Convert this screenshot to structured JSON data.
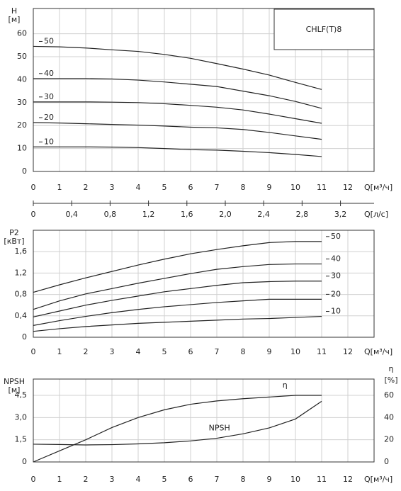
{
  "chart_data": [
    {
      "type": "line",
      "title": "CHLF(T)8",
      "ylabel": "H",
      "yunit": "[м]",
      "xlabel": "Q[м³/ч]",
      "x": [
        0,
        1,
        2,
        3,
        4,
        5,
        6,
        7,
        8,
        9,
        10,
        11
      ],
      "xlim": [
        0,
        13
      ],
      "xticks": [
        0,
        1,
        2,
        3,
        4,
        5,
        6,
        7,
        8,
        9,
        10,
        11,
        12
      ],
      "ylim": [
        0,
        71
      ],
      "yticks": [
        0,
        10,
        20,
        30,
        40,
        50,
        60
      ],
      "x2label": "Q[л/с]",
      "x2lim": [
        0,
        3.55
      ],
      "x2ticks": [
        0,
        {
          "value": 0.4,
          "label": "0,4"
        },
        {
          "value": 0.8,
          "label": "0,8"
        },
        {
          "value": 1.2,
          "label": "1,2"
        },
        {
          "value": 1.6,
          "label": "1,6"
        },
        {
          "value": 2.0,
          "label": "2,0"
        },
        {
          "value": 2.4,
          "label": "2,4"
        },
        {
          "value": 2.8,
          "label": "2,8"
        },
        {
          "value": 3.2,
          "label": "3,2"
        }
      ],
      "grid": true,
      "color": "#222",
      "series": [
        {
          "name": "50",
          "values": [
            54.5,
            54.3,
            53.8,
            53,
            52.3,
            51,
            49.3,
            47,
            44.6,
            42,
            38.8,
            35.7
          ]
        },
        {
          "name": "40",
          "values": [
            40.5,
            40.5,
            40.5,
            40.3,
            39.8,
            39,
            38,
            37,
            35,
            33,
            30.5,
            27.5
          ]
        },
        {
          "name": "30",
          "values": [
            30.3,
            30.3,
            30.3,
            30.2,
            30,
            29.5,
            28.8,
            28,
            26.8,
            25,
            23,
            21
          ]
        },
        {
          "name": "20",
          "values": [
            21.3,
            21.1,
            20.8,
            20.5,
            20.2,
            19.8,
            19.3,
            19,
            18.3,
            17,
            15.5,
            14
          ]
        },
        {
          "name": "10",
          "values": [
            10.7,
            10.7,
            10.7,
            10.6,
            10.4,
            10,
            9.5,
            9.3,
            8.8,
            8.2,
            7.4,
            6.5
          ]
        }
      ]
    },
    {
      "type": "line",
      "ylabel": "P2",
      "yunit": "[кВт]",
      "xlabel": "Q[м³/ч]",
      "x": [
        0,
        1,
        2,
        3,
        4,
        5,
        6,
        7,
        8,
        9,
        10,
        11
      ],
      "xlim": [
        0,
        13
      ],
      "xticks": [
        0,
        1,
        2,
        3,
        4,
        5,
        6,
        7,
        8,
        9,
        10,
        11,
        12
      ],
      "ylim": [
        0,
        2.0
      ],
      "yticks": [
        0,
        {
          "value": 0.4,
          "label": "0,4"
        },
        {
          "value": 0.8,
          "label": "0,8"
        },
        {
          "value": 1.2,
          "label": "1,2"
        },
        {
          "value": 1.6,
          "label": "1,6"
        }
      ],
      "grid": true,
      "color": "#222",
      "series": [
        {
          "name": "50",
          "values": [
            0.84,
            0.98,
            1.11,
            1.23,
            1.35,
            1.46,
            1.56,
            1.64,
            1.71,
            1.77,
            1.79,
            1.79
          ]
        },
        {
          "name": "40",
          "values": [
            0.52,
            0.68,
            0.81,
            0.91,
            1.01,
            1.1,
            1.19,
            1.27,
            1.32,
            1.36,
            1.37,
            1.37
          ]
        },
        {
          "name": "30",
          "values": [
            0.38,
            0.49,
            0.6,
            0.69,
            0.77,
            0.85,
            0.91,
            0.97,
            1.02,
            1.04,
            1.05,
            1.05
          ]
        },
        {
          "name": "20",
          "values": [
            0.22,
            0.31,
            0.39,
            0.46,
            0.52,
            0.57,
            0.61,
            0.65,
            0.68,
            0.71,
            0.71,
            0.71
          ]
        },
        {
          "name": "10",
          "values": [
            0.11,
            0.16,
            0.2,
            0.23,
            0.26,
            0.28,
            0.3,
            0.32,
            0.34,
            0.35,
            0.37,
            0.39
          ]
        }
      ]
    },
    {
      "type": "line",
      "ylabel": "NPSH",
      "yunit": "[м]",
      "y2label": "η",
      "y2unit": "[%]",
      "xlabel": "Q[м³/ч]",
      "x": [
        0,
        1,
        2,
        3,
        4,
        5,
        6,
        7,
        8,
        9,
        10,
        11
      ],
      "xlim": [
        0,
        13
      ],
      "xticks": [
        0,
        1,
        2,
        3,
        4,
        5,
        6,
        7,
        8,
        9,
        10,
        11,
        12
      ],
      "ylim": [
        0,
        5.6
      ],
      "yticks": [
        0,
        {
          "value": 1.5,
          "label": "1,5"
        },
        {
          "value": 3.0,
          "label": "3,0"
        },
        {
          "value": 4.5,
          "label": "4,5"
        }
      ],
      "y2lim": [
        0,
        74.7
      ],
      "y2ticks": [
        0,
        20,
        40,
        60
      ],
      "grid": true,
      "color": "#222",
      "series": [
        {
          "name": "NPSH",
          "values": [
            1.2,
            1.18,
            1.15,
            1.17,
            1.22,
            1.3,
            1.42,
            1.6,
            1.9,
            2.3,
            2.9,
            4.1
          ]
        },
        {
          "name": "η",
          "axis": "y2",
          "values": [
            0,
            10,
            20,
            31,
            40,
            47,
            52,
            55,
            57,
            58.5,
            60,
            60
          ]
        }
      ]
    }
  ]
}
